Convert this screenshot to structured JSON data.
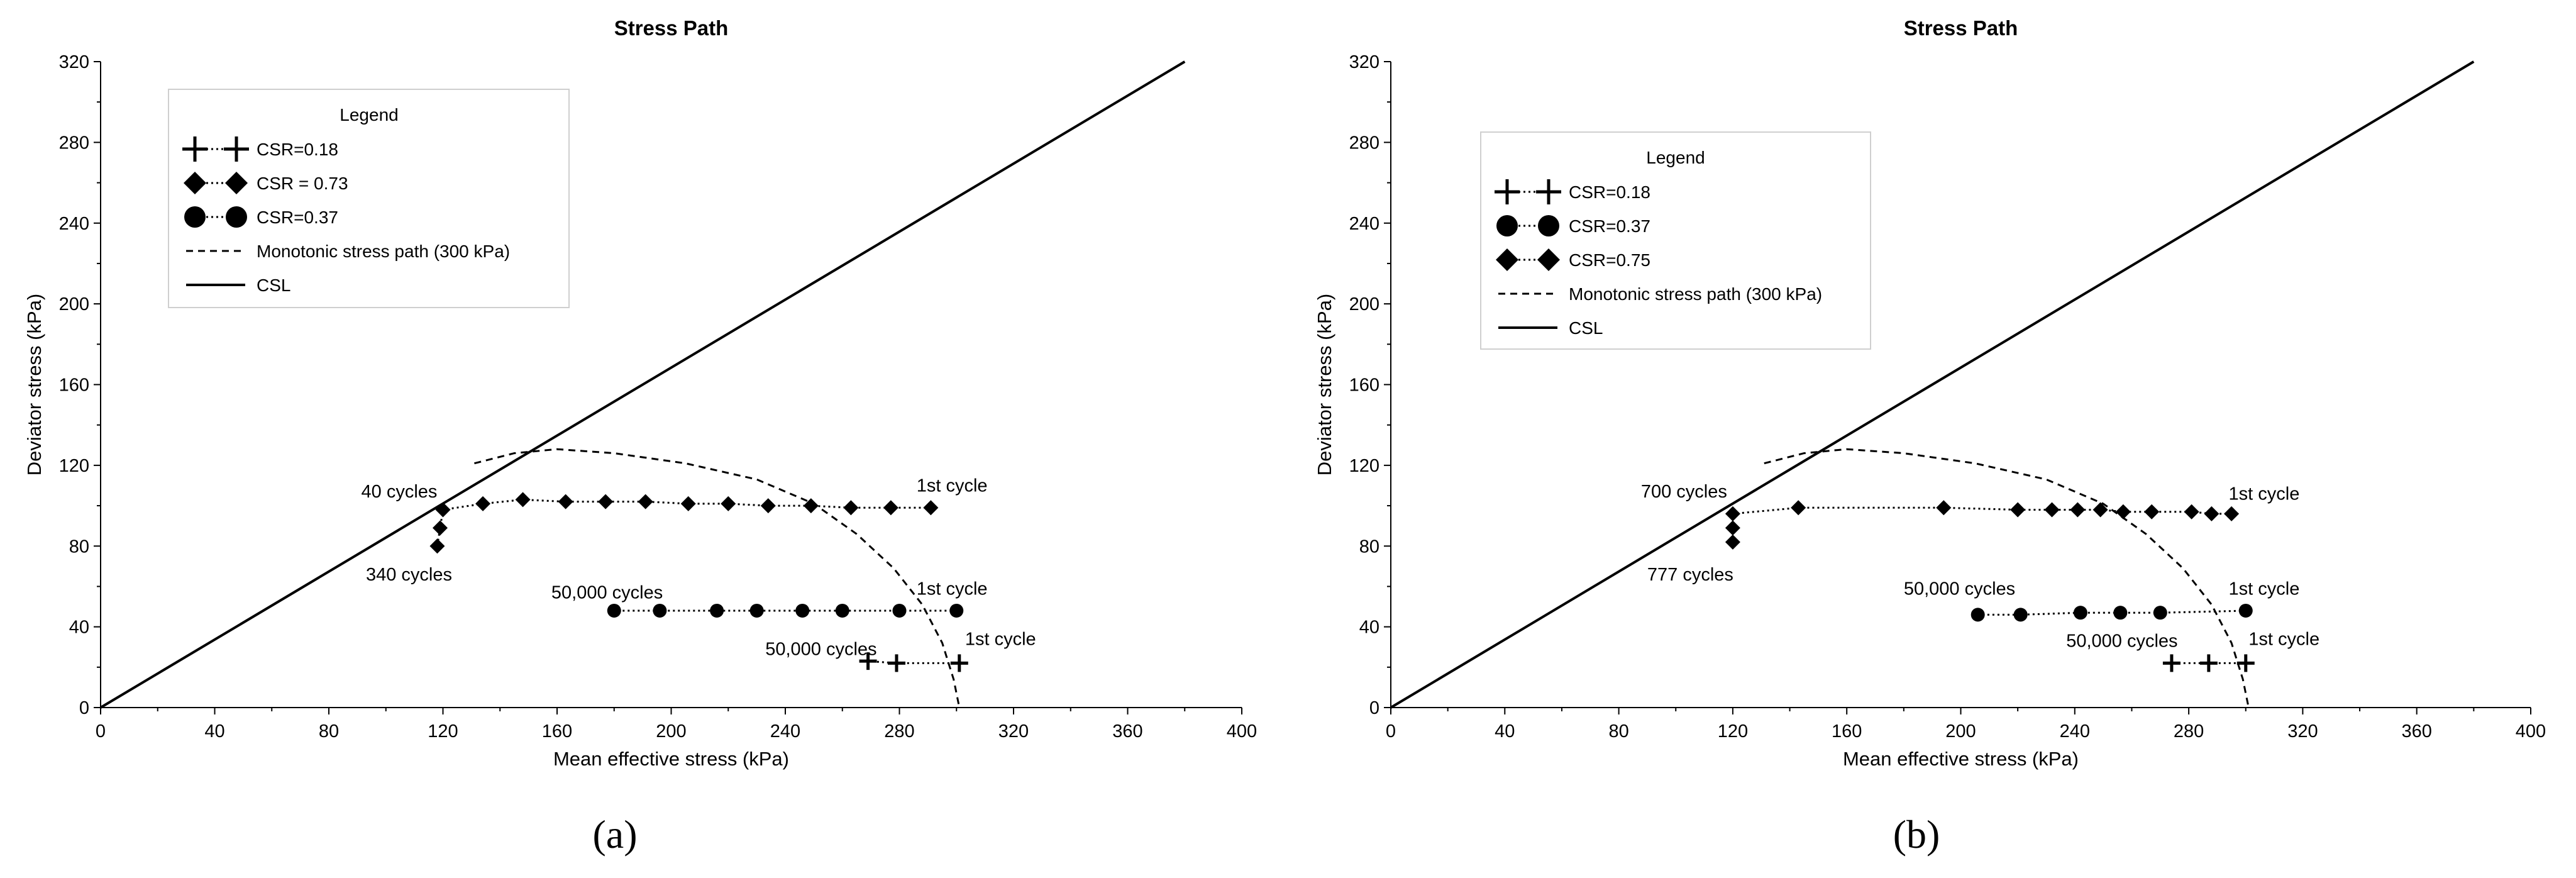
{
  "chart_data": [
    {
      "type": "line",
      "panel_label": "(a)",
      "title": "Stress Path",
      "xlabel": "Mean effective stress (kPa)",
      "ylabel": "Deviator stress (kPa)",
      "xlim": [
        0,
        400
      ],
      "ylim": [
        0,
        320
      ],
      "xticks": [
        0,
        40,
        80,
        120,
        160,
        200,
        240,
        280,
        320,
        360,
        400
      ],
      "yticks": [
        0,
        40,
        80,
        120,
        160,
        200,
        240,
        280,
        320
      ],
      "grid": false,
      "legend": {
        "title": "Legend",
        "placement": "top-left",
        "entries": [
          {
            "marker": "plus",
            "line": "dotted",
            "label": "CSR=0.18"
          },
          {
            "marker": "diamond",
            "line": "dotted",
            "label": "CSR = 0.73"
          },
          {
            "marker": "circle",
            "line": "dotted",
            "label": "CSR=0.37"
          },
          {
            "marker": "none",
            "line": "dashed",
            "label": "Monotonic stress path  (300 kPa)"
          },
          {
            "marker": "none",
            "line": "solid",
            "label": "CSL"
          }
        ]
      },
      "series": [
        {
          "name": "CSR=0.18",
          "marker": "plus",
          "line": "dotted",
          "x": [
            301,
            279,
            269
          ],
          "y": [
            22,
            22,
            23
          ]
        },
        {
          "name": "CSR = 0.73",
          "marker": "diamond",
          "line": "dotted",
          "x": [
            291,
            277,
            263,
            249,
            234,
            220,
            206,
            191,
            177,
            163,
            148,
            134,
            120,
            119,
            118
          ],
          "y": [
            99,
            99,
            99,
            100,
            100,
            101,
            101,
            102,
            102,
            102,
            103,
            101,
            98,
            89,
            80
          ]
        },
        {
          "name": "CSR=0.37",
          "marker": "circle",
          "line": "dotted",
          "x": [
            300,
            280,
            260,
            246,
            230,
            216,
            196,
            180
          ],
          "y": [
            48,
            48,
            48,
            48,
            48,
            48,
            48,
            48
          ]
        },
        {
          "name": "Monotonic stress path  (300 kPa)",
          "marker": "none",
          "line": "dashed",
          "x": [
            131,
            145,
            160,
            180,
            205,
            230,
            250,
            265,
            278,
            288,
            295,
            299,
            301
          ],
          "y": [
            121,
            126,
            128,
            126,
            121,
            113,
            101,
            86,
            69,
            51,
            32,
            14,
            0
          ]
        },
        {
          "name": "CSL",
          "marker": "none",
          "line": "solid",
          "x": [
            0,
            380
          ],
          "y": [
            0,
            320
          ]
        }
      ],
      "annotations": [
        {
          "text": "40 cycles",
          "x": 118,
          "y": 104,
          "anchor": "end"
        },
        {
          "text": "340 cycles",
          "x": 93,
          "y": 63,
          "anchor": "start"
        },
        {
          "text": "1st cycle",
          "x": 286,
          "y": 107,
          "anchor": "start"
        },
        {
          "text": "50,000 cycles",
          "x": 158,
          "y": 54,
          "anchor": "start"
        },
        {
          "text": "1st cycle",
          "x": 286,
          "y": 56,
          "anchor": "start"
        },
        {
          "text": "50,000 cycles",
          "x": 233,
          "y": 26,
          "anchor": "start"
        },
        {
          "text": "1st cycle",
          "x": 303,
          "y": 31,
          "anchor": "start"
        }
      ]
    },
    {
      "type": "line",
      "panel_label": "(b)",
      "title": "Stress Path",
      "xlabel": "Mean effective stress (kPa)",
      "ylabel": "Deviator stress (kPa)",
      "xlim": [
        0,
        400
      ],
      "ylim": [
        0,
        320
      ],
      "xticks": [
        0,
        40,
        80,
        120,
        160,
        200,
        240,
        280,
        320,
        360,
        400
      ],
      "yticks": [
        0,
        40,
        80,
        120,
        160,
        200,
        240,
        280,
        320
      ],
      "grid": false,
      "legend": {
        "title": "Legend",
        "placement": "top-left",
        "entries": [
          {
            "marker": "plus",
            "line": "dotted",
            "label": "CSR=0.18"
          },
          {
            "marker": "circle",
            "line": "dotted",
            "label": "CSR=0.37"
          },
          {
            "marker": "diamond",
            "line": "dotted",
            "label": "CSR=0.75"
          },
          {
            "marker": "none",
            "line": "dashed",
            "label": "Monotonic stress path (300 kPa)"
          },
          {
            "marker": "none",
            "line": "solid",
            "label": "CSL"
          }
        ]
      },
      "series": [
        {
          "name": "CSR=0.18",
          "marker": "plus",
          "line": "dotted",
          "x": [
            300,
            287,
            274
          ],
          "y": [
            22,
            22,
            22
          ]
        },
        {
          "name": "CSR=0.37",
          "marker": "circle",
          "line": "dotted",
          "x": [
            300,
            270,
            256,
            242,
            221,
            206
          ],
          "y": [
            48,
            47,
            47,
            47,
            46,
            46
          ]
        },
        {
          "name": "CSR=0.75",
          "marker": "diamond",
          "line": "dotted",
          "x": [
            295,
            288,
            281,
            267,
            257,
            249,
            241,
            232,
            220,
            194,
            143,
            120,
            120,
            120
          ],
          "y": [
            96,
            96,
            97,
            97,
            97,
            98,
            98,
            98,
            98,
            99,
            99,
            96,
            89,
            82
          ]
        },
        {
          "name": "Monotonic stress path (300 kPa)",
          "marker": "none",
          "line": "dashed",
          "x": [
            131,
            145,
            160,
            180,
            205,
            230,
            250,
            265,
            278,
            288,
            295,
            299,
            301
          ],
          "y": [
            121,
            126,
            128,
            126,
            121,
            113,
            101,
            86,
            69,
            51,
            32,
            14,
            0
          ]
        },
        {
          "name": "CSL",
          "marker": "none",
          "line": "solid",
          "x": [
            0,
            380
          ],
          "y": [
            0,
            320
          ]
        }
      ],
      "annotations": [
        {
          "text": "700 cycles",
          "x": 118,
          "y": 104,
          "anchor": "end"
        },
        {
          "text": "777 cycles",
          "x": 90,
          "y": 63,
          "anchor": "start"
        },
        {
          "text": "1st cycle",
          "x": 294,
          "y": 103,
          "anchor": "start"
        },
        {
          "text": "50,000 cycles",
          "x": 180,
          "y": 56,
          "anchor": "start"
        },
        {
          "text": "1st cycle",
          "x": 294,
          "y": 56,
          "anchor": "start"
        },
        {
          "text": "50,000 cycles",
          "x": 237,
          "y": 30,
          "anchor": "start"
        },
        {
          "text": "1st cycle",
          "x": 301,
          "y": 31,
          "anchor": "start"
        }
      ]
    }
  ]
}
